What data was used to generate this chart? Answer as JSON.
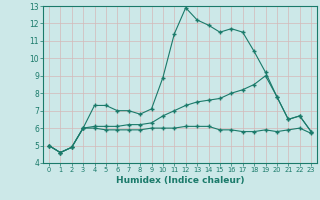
{
  "title": "",
  "xlabel": "Humidex (Indice chaleur)",
  "background_color": "#cce8e8",
  "grid_color": "#b8d4d4",
  "line_color": "#1a7a6a",
  "x_values": [
    0,
    1,
    2,
    3,
    4,
    5,
    6,
    7,
    8,
    9,
    10,
    11,
    12,
    13,
    14,
    15,
    16,
    17,
    18,
    19,
    20,
    21,
    22,
    23
  ],
  "line1": [
    5.0,
    4.6,
    4.9,
    6.0,
    7.3,
    7.3,
    7.0,
    7.0,
    6.8,
    7.1,
    8.9,
    11.4,
    12.9,
    12.2,
    11.9,
    11.5,
    11.7,
    11.5,
    10.4,
    9.2,
    7.8,
    6.5,
    6.7,
    5.8
  ],
  "line2": [
    5.0,
    4.6,
    4.9,
    6.0,
    6.1,
    6.1,
    6.1,
    6.2,
    6.2,
    6.3,
    6.7,
    7.0,
    7.3,
    7.5,
    7.6,
    7.7,
    8.0,
    8.2,
    8.5,
    9.0,
    7.8,
    6.5,
    6.7,
    5.8
  ],
  "line3": [
    5.0,
    4.6,
    4.9,
    6.0,
    6.0,
    5.9,
    5.9,
    5.9,
    5.9,
    6.0,
    6.0,
    6.0,
    6.1,
    6.1,
    6.1,
    5.9,
    5.9,
    5.8,
    5.8,
    5.9,
    5.8,
    5.9,
    6.0,
    5.7
  ],
  "ylim": [
    4,
    13
  ],
  "xlim": [
    -0.5,
    23.5
  ],
  "yticks": [
    4,
    5,
    6,
    7,
    8,
    9,
    10,
    11,
    12,
    13
  ],
  "xticks": [
    0,
    1,
    2,
    3,
    4,
    5,
    6,
    7,
    8,
    9,
    10,
    11,
    12,
    13,
    14,
    15,
    16,
    17,
    18,
    19,
    20,
    21,
    22,
    23
  ]
}
